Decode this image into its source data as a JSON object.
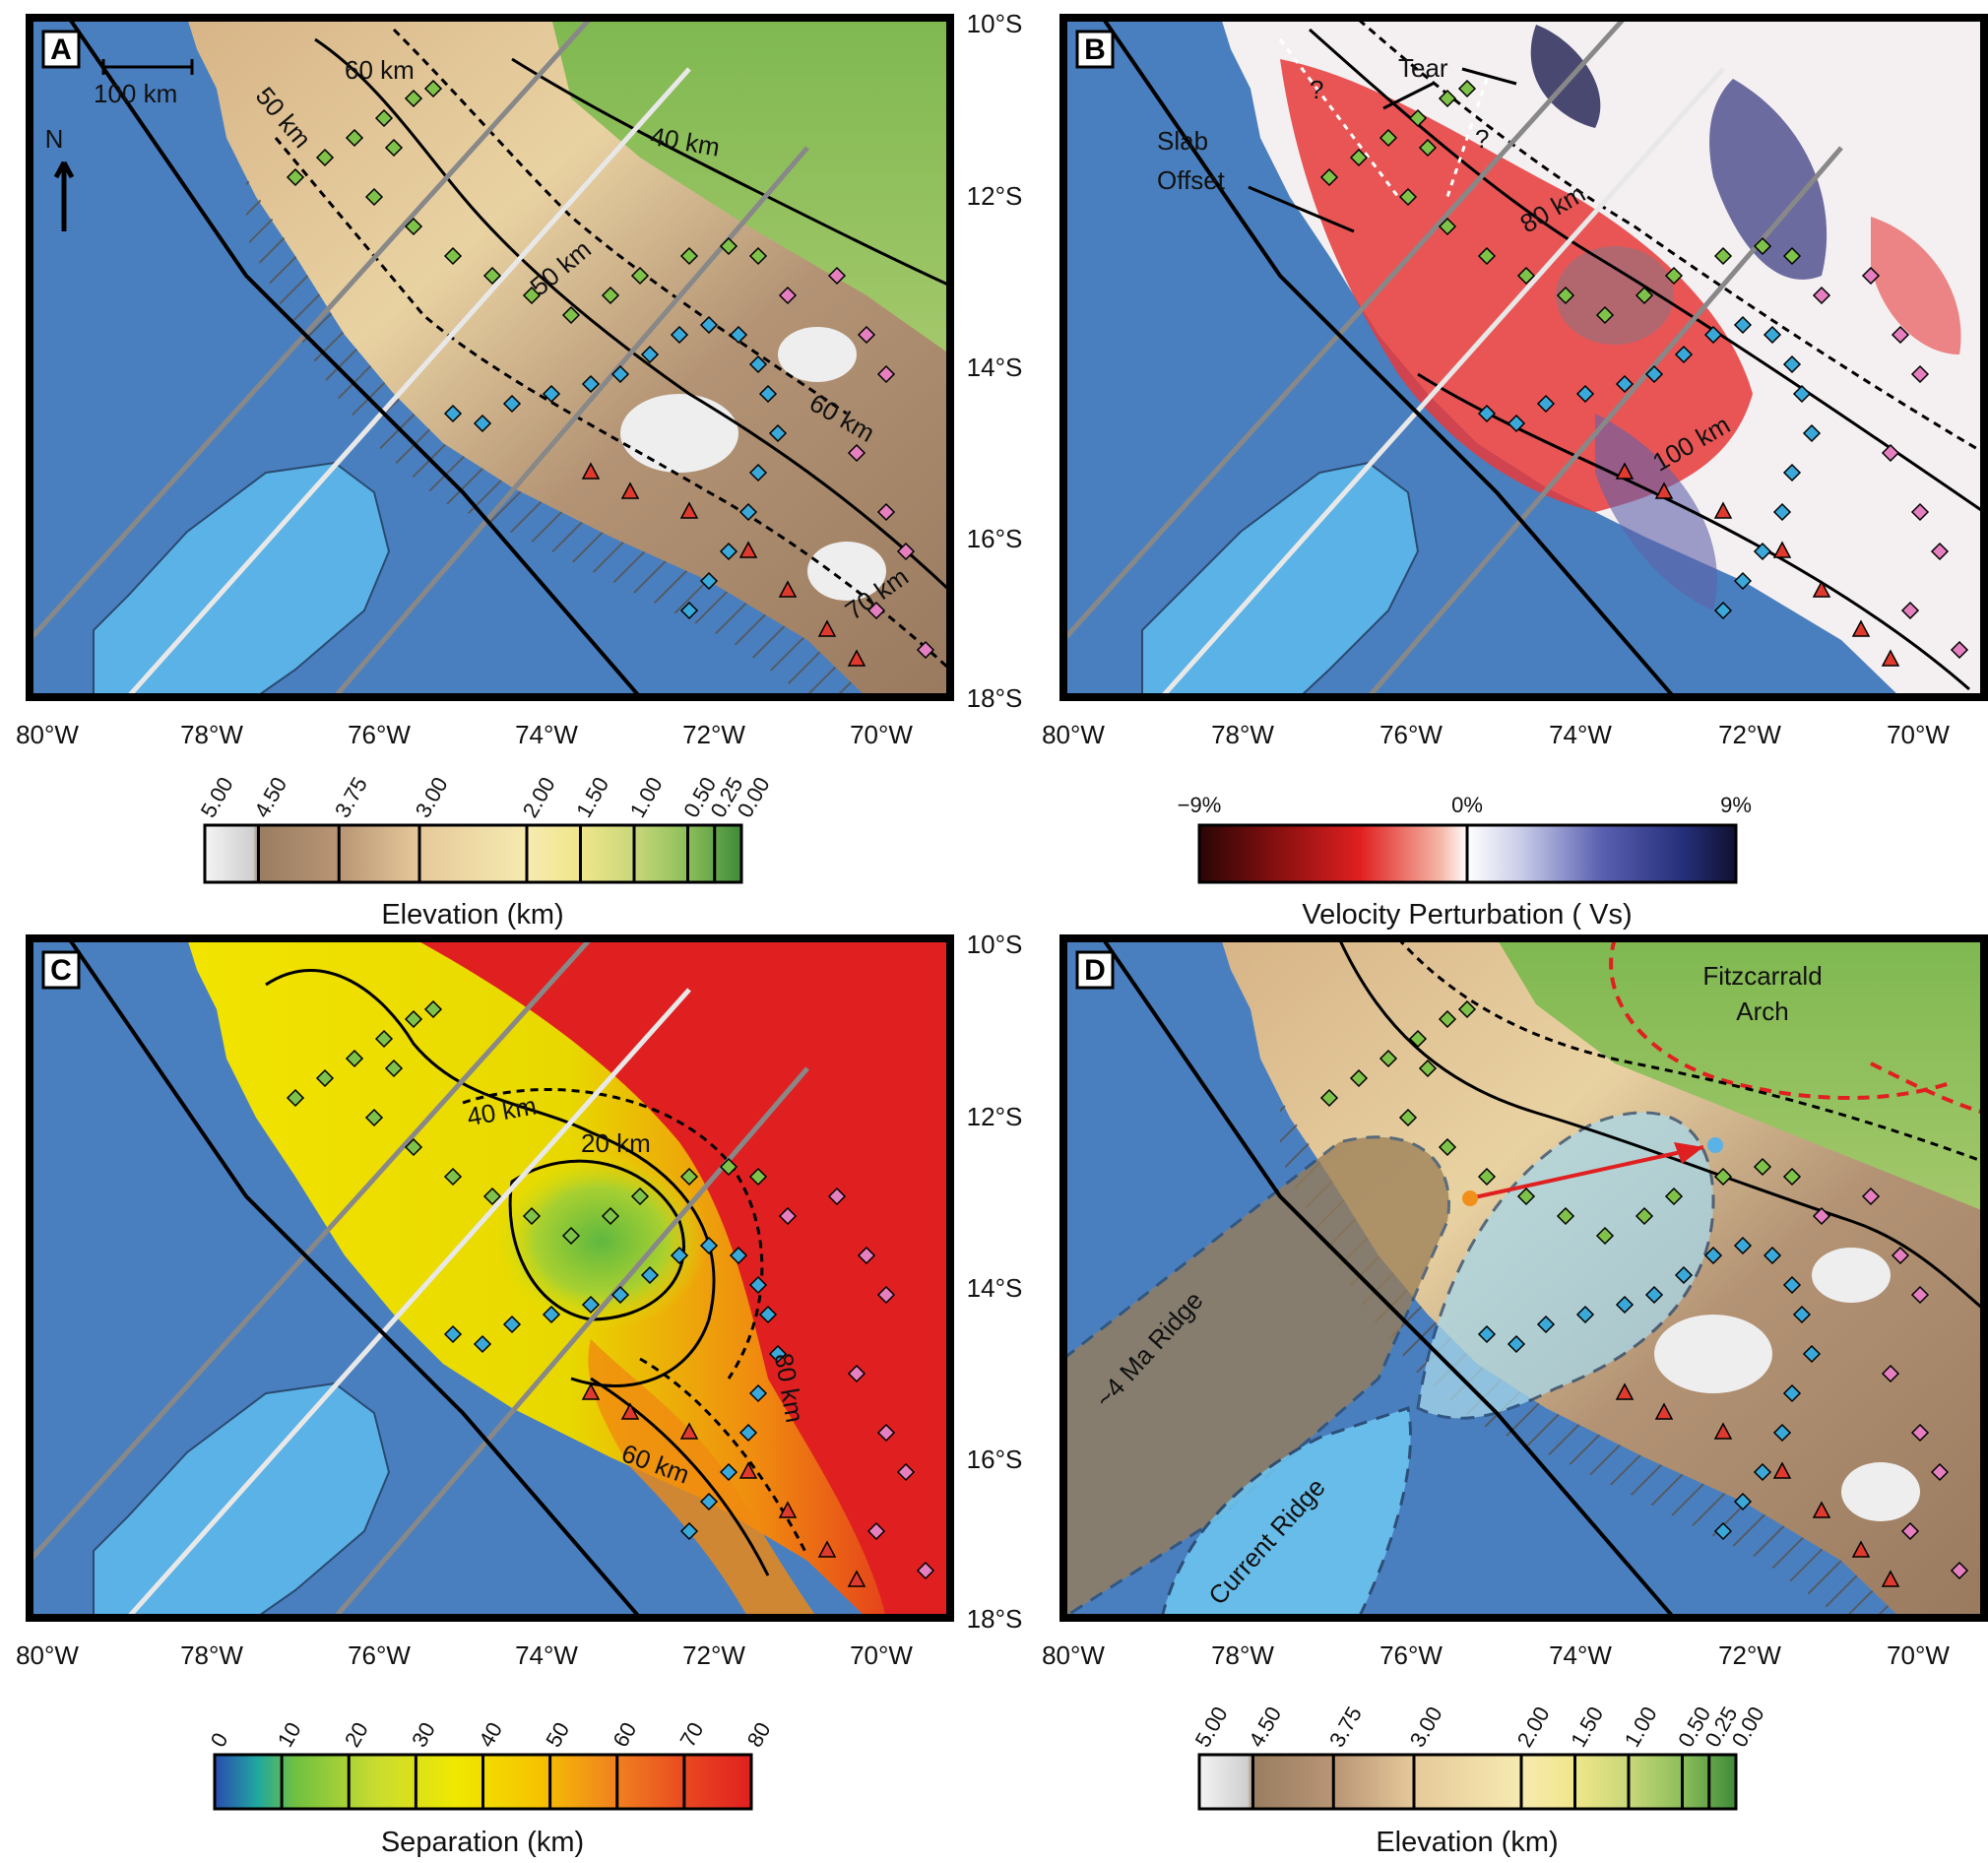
{
  "colors": {
    "ocean": "#4a7fbf",
    "ridge_blue": "#5ab2e6",
    "slab_line": "#000000",
    "green_marker": "#7fc24a",
    "blue_marker": "#3aa8d8",
    "pink_marker": "#e57fbf",
    "volcano_red": "#e03a2e",
    "flat_slab_red": "#e02020"
  },
  "axes": {
    "lat_labels": [
      "10°S",
      "12°S",
      "14°S",
      "16°S",
      "18°S"
    ],
    "lon_labels": [
      "80°W",
      "78°W",
      "76°W",
      "74°W",
      "72°W",
      "70°W"
    ]
  },
  "panels": [
    {
      "letter": "A",
      "scale_bar": "100 km",
      "north": "N",
      "contour_labels": [
        "60 km",
        "50 km",
        "40 km",
        "50 km",
        "60 km",
        "70 km"
      ]
    },
    {
      "letter": "B",
      "annotations": [
        "Tear",
        "Slab",
        "Offset",
        "?",
        "?"
      ],
      "contour_labels": [
        "80 km",
        "100 km"
      ]
    },
    {
      "letter": "C",
      "contour_labels": [
        "40 km",
        "20 km",
        "60 km",
        "80 km"
      ]
    },
    {
      "letter": "D",
      "annotations": [
        "Fitzcarrald",
        "Arch",
        "~4 Ma Ridge",
        "Current Ridge"
      ]
    }
  ],
  "colorbars": {
    "elevation": {
      "title": "Elevation (km)",
      "ticks": [
        "5.00",
        "4.50",
        "3.75",
        "3.00",
        "2.00",
        "1.50",
        "1.00",
        "0.50",
        "0.25",
        "0.00"
      ]
    },
    "velocity": {
      "title": "Velocity Perturbation ( Vs)",
      "ticks": [
        "−9%",
        "0%",
        "9%"
      ]
    },
    "separation": {
      "title": "Separation (km)",
      "ticks": [
        "0",
        "10",
        "20",
        "30",
        "40",
        "50",
        "60",
        "70",
        "80"
      ]
    },
    "elevation_d": {
      "title": "Elevation (km)",
      "ticks": [
        "5.00",
        "4.50",
        "3.75",
        "3.00",
        "2.00",
        "1.50",
        "1.00",
        "0.50",
        "0.25",
        "0.00"
      ]
    }
  }
}
